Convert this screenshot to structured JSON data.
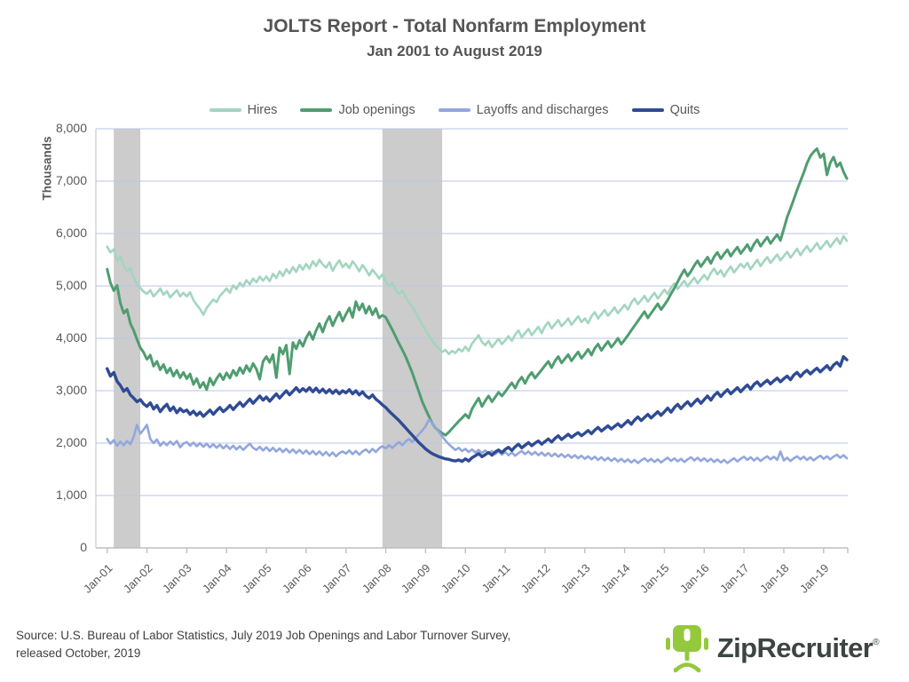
{
  "title": "JOLTS Report - Total Nonfarm Employment",
  "subtitle": "Jan 2001 to August 2019",
  "y_axis_title": "Thousands",
  "source": {
    "line1": "Source: U.S. Bureau of Labor Statistics, July 2019 Job Openings and Labor Turnover Survey,",
    "line2": "released October, 2019"
  },
  "logo": {
    "text": "ZipRecruiter",
    "registered": "®",
    "chair_color": "#94C83D",
    "text_color": "#3d4543"
  },
  "colors": {
    "gridline": "#b9c6e6",
    "axis": "#bfbfbf",
    "recession_band": "#cccccc",
    "text_gray": "#595959"
  },
  "chart_data": {
    "type": "line",
    "title": "JOLTS Report - Total Nonfarm Employment",
    "subtitle": "Jan 2001 to August 2019",
    "ylabel": "Thousands",
    "ylim": [
      0,
      8000
    ],
    "y_tick_labels": [
      "0",
      "1,000",
      "2,000",
      "3,000",
      "4,000",
      "5,000",
      "6,000",
      "7,000",
      "8,000"
    ],
    "x_start": "2001-01",
    "x_end": "2019-08",
    "x_interval": "monthly",
    "x_tick_labels": [
      "Jan-01",
      "Jan-02",
      "Jan-03",
      "Jan-04",
      "Jan-05",
      "Jan-06",
      "Jan-07",
      "Jan-08",
      "Jan-09",
      "Jan-10",
      "Jan-11",
      "Jan-12",
      "Jan-13",
      "Jan-14",
      "Jan-15",
      "Jan-16",
      "Jan-17",
      "Jan-18",
      "Jan-19"
    ],
    "grid": "horizontal",
    "legend_position": "top",
    "recession_bands": [
      {
        "from": "2001-03",
        "to": "2001-11"
      },
      {
        "from": "2007-12",
        "to": "2009-06"
      }
    ],
    "series": [
      {
        "name": "Hires",
        "color": "#a3d5bf",
        "width": 2.6,
        "values": [
          5750,
          5640,
          5700,
          5480,
          5560,
          5390,
          5280,
          5340,
          5150,
          5040,
          4960,
          4890,
          4850,
          4920,
          4800,
          4870,
          4950,
          4830,
          4900,
          4780,
          4850,
          4920,
          4800,
          4870,
          4800,
          4880,
          4730,
          4640,
          4560,
          4450,
          4580,
          4660,
          4740,
          4690,
          4810,
          4880,
          4950,
          4870,
          5010,
          4940,
          5060,
          4990,
          5110,
          5030,
          5140,
          5070,
          5180,
          5100,
          5180,
          5090,
          5230,
          5150,
          5280,
          5190,
          5320,
          5240,
          5360,
          5270,
          5400,
          5310,
          5420,
          5330,
          5470,
          5380,
          5500,
          5410,
          5350,
          5450,
          5290,
          5400,
          5490,
          5360,
          5430,
          5340,
          5470,
          5390,
          5280,
          5400,
          5310,
          5200,
          5310,
          5230,
          5140,
          5220,
          5080,
          5000,
          5060,
          4930,
          4850,
          4910,
          4780,
          4690,
          4600,
          4500,
          4380,
          4260,
          4150,
          4050,
          3950,
          3870,
          3800,
          3740,
          3780,
          3700,
          3760,
          3720,
          3800,
          3750,
          3840,
          3760,
          3900,
          3980,
          4060,
          3930,
          3870,
          3950,
          3830,
          3910,
          3990,
          3890,
          3960,
          4040,
          3950,
          4070,
          4150,
          4020,
          4100,
          4180,
          4060,
          4140,
          4220,
          4100,
          4230,
          4310,
          4190,
          4270,
          4350,
          4230,
          4300,
          4380,
          4260,
          4340,
          4420,
          4310,
          4380,
          4290,
          4420,
          4500,
          4380,
          4460,
          4540,
          4430,
          4510,
          4590,
          4480,
          4560,
          4640,
          4550,
          4680,
          4760,
          4650,
          4730,
          4810,
          4700,
          4790,
          4870,
          4760,
          4840,
          4930,
          4840,
          4970,
          5050,
          4940,
          5020,
          5100,
          4990,
          5080,
          5160,
          5050,
          5130,
          5210,
          5120,
          5250,
          5330,
          5220,
          5300,
          5180,
          5290,
          5370,
          5260,
          5340,
          5420,
          5350,
          5440,
          5320,
          5410,
          5500,
          5380,
          5470,
          5550,
          5440,
          5520,
          5600,
          5490,
          5570,
          5650,
          5540,
          5620,
          5710,
          5590,
          5680,
          5760,
          5650,
          5730,
          5820,
          5700,
          5780,
          5860,
          5740,
          5830,
          5910,
          5800,
          5950,
          5860
        ]
      },
      {
        "name": "Job openings",
        "color": "#4f9d70",
        "width": 3,
        "values": [
          5320,
          5060,
          4910,
          5010,
          4670,
          4480,
          4550,
          4280,
          4150,
          3980,
          3820,
          3730,
          3600,
          3680,
          3470,
          3560,
          3400,
          3500,
          3340,
          3430,
          3280,
          3390,
          3250,
          3350,
          3230,
          3320,
          3120,
          3230,
          3060,
          3160,
          3020,
          3240,
          3110,
          3230,
          3320,
          3210,
          3340,
          3240,
          3390,
          3290,
          3440,
          3330,
          3480,
          3370,
          3520,
          3410,
          3220,
          3560,
          3650,
          3540,
          3690,
          3250,
          3820,
          3700,
          3870,
          3320,
          3920,
          3800,
          3960,
          3850,
          4010,
          4120,
          3980,
          4150,
          4280,
          4120,
          4300,
          4420,
          4240,
          4380,
          4500,
          4330,
          4460,
          4580,
          4400,
          4700,
          4540,
          4660,
          4480,
          4610,
          4450,
          4570,
          4390,
          4440,
          4400,
          4280,
          4160,
          4030,
          3900,
          3780,
          3650,
          3500,
          3340,
          3160,
          2980,
          2790,
          2650,
          2510,
          2380,
          2290,
          2230,
          2190,
          2150,
          2210,
          2280,
          2350,
          2420,
          2480,
          2550,
          2480,
          2650,
          2760,
          2860,
          2700,
          2810,
          2900,
          2790,
          2880,
          2970,
          2900,
          2980,
          3070,
          3150,
          3050,
          3180,
          3260,
          3140,
          3270,
          3350,
          3240,
          3320,
          3400,
          3480,
          3560,
          3440,
          3570,
          3650,
          3530,
          3610,
          3690,
          3570,
          3660,
          3740,
          3620,
          3700,
          3790,
          3680,
          3810,
          3890,
          3770,
          3860,
          3940,
          3830,
          3910,
          4000,
          3890,
          3970,
          4060,
          4150,
          4240,
          4330,
          4420,
          4510,
          4390,
          4480,
          4570,
          4660,
          4550,
          4640,
          4730,
          4850,
          4960,
          5080,
          5200,
          5310,
          5190,
          5280,
          5390,
          5480,
          5370,
          5460,
          5550,
          5430,
          5560,
          5640,
          5520,
          5610,
          5690,
          5570,
          5660,
          5740,
          5620,
          5700,
          5790,
          5670,
          5800,
          5880,
          5760,
          5850,
          5930,
          5810,
          5900,
          5980,
          5870,
          6090,
          6310,
          6480,
          6650,
          6830,
          7000,
          7160,
          7340,
          7480,
          7560,
          7620,
          7450,
          7520,
          7120,
          7350,
          7460,
          7280,
          7350,
          7180,
          7050
        ]
      },
      {
        "name": "Layoffs and discharges",
        "color": "#92a7dc",
        "width": 2.6,
        "values": [
          2080,
          1990,
          2060,
          1950,
          2030,
          1960,
          2040,
          1980,
          2120,
          2350,
          2180,
          2260,
          2350,
          2080,
          2000,
          2070,
          1950,
          2020,
          1960,
          2030,
          1970,
          2040,
          1920,
          1990,
          2020,
          1950,
          2010,
          1940,
          2000,
          1930,
          1990,
          1920,
          1980,
          1910,
          1970,
          1900,
          1960,
          1890,
          1950,
          1880,
          1940,
          1870,
          1930,
          1990,
          1910,
          1870,
          1930,
          1860,
          1920,
          1850,
          1910,
          1840,
          1900,
          1830,
          1890,
          1820,
          1880,
          1810,
          1870,
          1800,
          1860,
          1790,
          1850,
          1780,
          1840,
          1770,
          1830,
          1760,
          1820,
          1750,
          1810,
          1840,
          1800,
          1860,
          1790,
          1850,
          1780,
          1840,
          1880,
          1820,
          1890,
          1830,
          1900,
          1940,
          1900,
          1960,
          1910,
          1970,
          2020,
          1960,
          2030,
          2080,
          2020,
          2100,
          2170,
          2240,
          2320,
          2450,
          2380,
          2300,
          2210,
          2130,
          2050,
          1980,
          1920,
          1870,
          1910,
          1850,
          1890,
          1830,
          1880,
          1820,
          1870,
          1810,
          1860,
          1800,
          1850,
          1790,
          1840,
          1780,
          1830,
          1770,
          1820,
          1760,
          1810,
          1850,
          1790,
          1840,
          1780,
          1830,
          1770,
          1820,
          1760,
          1810,
          1750,
          1800,
          1740,
          1790,
          1730,
          1780,
          1720,
          1770,
          1710,
          1760,
          1700,
          1750,
          1690,
          1740,
          1680,
          1730,
          1670,
          1720,
          1660,
          1710,
          1650,
          1700,
          1640,
          1690,
          1630,
          1680,
          1620,
          1670,
          1710,
          1650,
          1700,
          1640,
          1690,
          1630,
          1680,
          1720,
          1660,
          1710,
          1650,
          1700,
          1640,
          1690,
          1730,
          1670,
          1720,
          1660,
          1710,
          1650,
          1700,
          1640,
          1690,
          1630,
          1680,
          1620,
          1670,
          1710,
          1650,
          1700,
          1740,
          1680,
          1730,
          1670,
          1720,
          1660,
          1710,
          1750,
          1690,
          1740,
          1680,
          1840,
          1670,
          1720,
          1660,
          1710,
          1750,
          1690,
          1740,
          1680,
          1730,
          1670,
          1720,
          1760,
          1700,
          1750,
          1690,
          1740,
          1780,
          1720,
          1770,
          1710
        ]
      },
      {
        "name": "Quits",
        "color": "#2f4b94",
        "width": 3.4,
        "values": [
          3420,
          3280,
          3350,
          3180,
          3100,
          2990,
          3040,
          2920,
          2860,
          2790,
          2830,
          2750,
          2700,
          2770,
          2650,
          2720,
          2600,
          2680,
          2740,
          2620,
          2690,
          2580,
          2660,
          2600,
          2630,
          2550,
          2610,
          2530,
          2590,
          2510,
          2570,
          2630,
          2550,
          2620,
          2680,
          2600,
          2650,
          2720,
          2640,
          2710,
          2780,
          2700,
          2770,
          2840,
          2760,
          2830,
          2900,
          2820,
          2880,
          2800,
          2870,
          2940,
          2860,
          2930,
          3000,
          2920,
          2990,
          3060,
          2980,
          3040,
          2990,
          3060,
          2980,
          3050,
          2970,
          3030,
          2960,
          3020,
          2950,
          3010,
          2940,
          3000,
          2960,
          3020,
          2940,
          3000,
          2920,
          2980,
          2900,
          2860,
          2920,
          2840,
          2790,
          2730,
          2680,
          2610,
          2550,
          2490,
          2430,
          2360,
          2290,
          2220,
          2150,
          2080,
          2010,
          1950,
          1890,
          1840,
          1800,
          1770,
          1740,
          1720,
          1700,
          1690,
          1670,
          1660,
          1680,
          1650,
          1700,
          1660,
          1720,
          1760,
          1800,
          1740,
          1780,
          1820,
          1770,
          1830,
          1870,
          1820,
          1880,
          1920,
          1860,
          1930,
          1980,
          1910,
          1960,
          2010,
          1950,
          2000,
          2040,
          1980,
          2030,
          2080,
          2020,
          2090,
          2140,
          2070,
          2120,
          2170,
          2110,
          2160,
          2200,
          2140,
          2190,
          2240,
          2180,
          2250,
          2300,
          2230,
          2280,
          2330,
          2270,
          2320,
          2370,
          2310,
          2370,
          2430,
          2360,
          2440,
          2500,
          2430,
          2490,
          2550,
          2480,
          2540,
          2600,
          2530,
          2600,
          2670,
          2590,
          2680,
          2740,
          2660,
          2730,
          2790,
          2710,
          2780,
          2840,
          2760,
          2830,
          2900,
          2820,
          2910,
          2970,
          2890,
          2960,
          3020,
          2940,
          3000,
          3060,
          2980,
          3050,
          3110,
          3030,
          3120,
          3170,
          3090,
          3150,
          3200,
          3130,
          3190,
          3240,
          3170,
          3230,
          3280,
          3210,
          3300,
          3350,
          3270,
          3340,
          3390,
          3320,
          3380,
          3430,
          3360,
          3420,
          3480,
          3400,
          3490,
          3540,
          3470,
          3650,
          3590
        ]
      }
    ]
  }
}
